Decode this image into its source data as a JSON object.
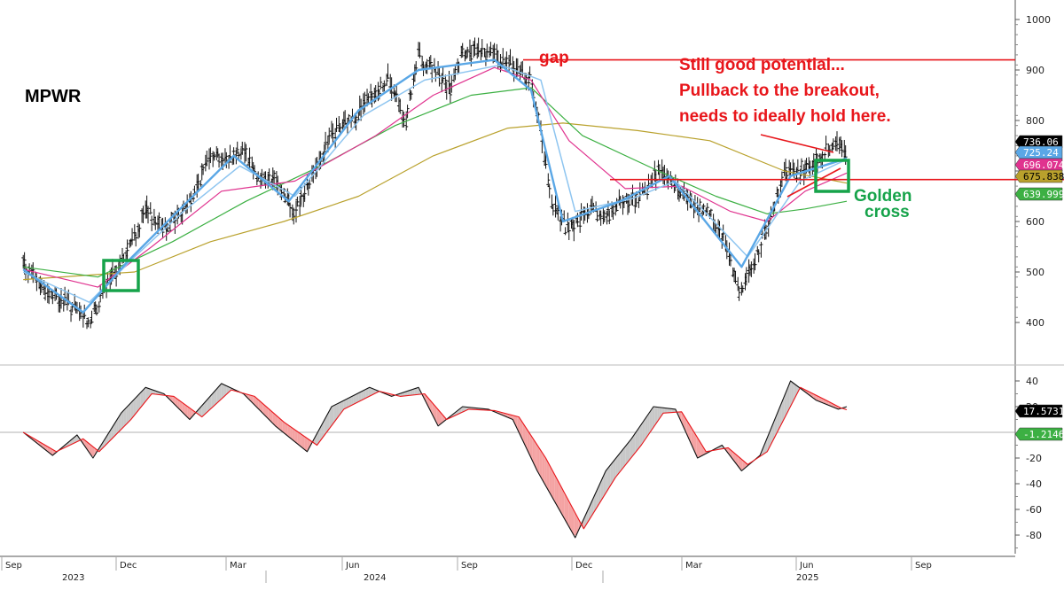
{
  "chart_data": [
    {
      "type": "candlestick",
      "ticker": "MPWR",
      "ylim": [
        365,
        1010
      ],
      "yticks": [
        400,
        500,
        600,
        700,
        800,
        900,
        1000
      ],
      "x_month_labels": [
        "Sep",
        "Dec",
        "Mar",
        "Jun",
        "Sep",
        "Dec",
        "Mar",
        "Jun",
        "Sep"
      ],
      "x_year_labels": [
        "2023",
        "2024",
        "2025"
      ],
      "price_path": [
        [
          "2023-09-01",
          520
        ],
        [
          "2023-09-20",
          460
        ],
        [
          "2023-10-05",
          440
        ],
        [
          "2023-10-25",
          400
        ],
        [
          "2023-11-10",
          480
        ],
        [
          "2023-11-25",
          540
        ],
        [
          "2023-12-10",
          620
        ],
        [
          "2023-12-25",
          590
        ],
        [
          "2024-01-08",
          615
        ],
        [
          "2024-01-20",
          660
        ],
        [
          "2024-02-01",
          740
        ],
        [
          "2024-02-15",
          720
        ],
        [
          "2024-02-28",
          750
        ],
        [
          "2024-03-10",
          690
        ],
        [
          "2024-03-25",
          680
        ],
        [
          "2024-04-10",
          620
        ],
        [
          "2024-04-25",
          700
        ],
        [
          "2024-05-10",
          770
        ],
        [
          "2024-05-25",
          800
        ],
        [
          "2024-06-10",
          840
        ],
        [
          "2024-06-25",
          880
        ],
        [
          "2024-07-10",
          800
        ],
        [
          "2024-07-20",
          930
        ],
        [
          "2024-08-05",
          890
        ],
        [
          "2024-08-15",
          860
        ],
        [
          "2024-08-25",
          930
        ],
        [
          "2024-09-10",
          940
        ],
        [
          "2024-09-28",
          915
        ],
        [
          "2024-10-10",
          900
        ],
        [
          "2024-10-20",
          880
        ],
        [
          "2024-10-28",
          770
        ],
        [
          "2024-11-05",
          640
        ],
        [
          "2024-11-20",
          580
        ],
        [
          "2024-12-05",
          620
        ],
        [
          "2024-12-20",
          610
        ],
        [
          "2025-01-05",
          640
        ],
        [
          "2025-01-20",
          650
        ],
        [
          "2025-02-01",
          705
        ],
        [
          "2025-02-15",
          670
        ],
        [
          "2025-02-28",
          640
        ],
        [
          "2025-03-15",
          610
        ],
        [
          "2025-03-28",
          560
        ],
        [
          "2025-04-08",
          460
        ],
        [
          "2025-04-20",
          520
        ],
        [
          "2025-05-01",
          590
        ],
        [
          "2025-05-15",
          690
        ],
        [
          "2025-05-28",
          700
        ],
        [
          "2025-06-10",
          720
        ],
        [
          "2025-06-25",
          760
        ],
        [
          "2025-07-05",
          736
        ]
      ],
      "ema_fast": [
        [
          "2023-09-01",
          505
        ],
        [
          "2023-10-20",
          420
        ],
        [
          "2023-11-25",
          520
        ],
        [
          "2024-01-01",
          610
        ],
        [
          "2024-02-20",
          730
        ],
        [
          "2024-04-05",
          640
        ],
        [
          "2024-06-01",
          820
        ],
        [
          "2024-07-20",
          900
        ],
        [
          "2024-09-20",
          920
        ],
        [
          "2024-10-20",
          860
        ],
        [
          "2024-11-15",
          600
        ],
        [
          "2025-01-01",
          640
        ],
        [
          "2025-02-10",
          690
        ],
        [
          "2025-04-10",
          510
        ],
        [
          "2025-05-20",
          690
        ],
        [
          "2025-07-05",
          725
        ]
      ],
      "ema_slow": [
        [
          "2023-09-01",
          500
        ],
        [
          "2023-10-25",
          440
        ],
        [
          "2023-12-01",
          530
        ],
        [
          "2024-01-10",
          620
        ],
        [
          "2024-02-25",
          710
        ],
        [
          "2024-04-10",
          650
        ],
        [
          "2024-06-05",
          810
        ],
        [
          "2024-07-25",
          880
        ],
        [
          "2024-09-25",
          910
        ],
        [
          "2024-10-28",
          880
        ],
        [
          "2024-11-25",
          620
        ],
        [
          "2025-01-10",
          645
        ],
        [
          "2025-02-15",
          680
        ],
        [
          "2025-04-15",
          530
        ],
        [
          "2025-05-28",
          680
        ],
        [
          "2025-07-05",
          723
        ]
      ],
      "ma_50": [
        [
          "2023-09-01",
          505
        ],
        [
          "2023-11-01",
          470
        ],
        [
          "2023-12-15",
          550
        ],
        [
          "2024-02-10",
          660
        ],
        [
          "2024-04-10",
          680
        ],
        [
          "2024-06-15",
          770
        ],
        [
          "2024-08-01",
          850
        ],
        [
          "2024-09-20",
          905
        ],
        [
          "2024-10-20",
          880
        ],
        [
          "2024-11-20",
          760
        ],
        [
          "2025-01-05",
          665
        ],
        [
          "2025-02-20",
          670
        ],
        [
          "2025-04-01",
          620
        ],
        [
          "2025-05-01",
          600
        ],
        [
          "2025-06-01",
          660
        ],
        [
          "2025-07-05",
          696
        ]
      ],
      "ma_100": [
        [
          "2023-09-01",
          510
        ],
        [
          "2023-11-01",
          490
        ],
        [
          "2024-01-01",
          560
        ],
        [
          "2024-03-01",
          640
        ],
        [
          "2024-05-01",
          710
        ],
        [
          "2024-07-01",
          790
        ],
        [
          "2024-09-01",
          850
        ],
        [
          "2024-10-20",
          865
        ],
        [
          "2024-12-01",
          770
        ],
        [
          "2025-02-01",
          700
        ],
        [
          "2025-03-20",
          650
        ],
        [
          "2025-05-01",
          615
        ],
        [
          "2025-06-01",
          625
        ],
        [
          "2025-07-05",
          640
        ]
      ],
      "ma_200": [
        [
          "2023-09-01",
          485
        ],
        [
          "2023-12-01",
          500
        ],
        [
          "2024-02-01",
          560
        ],
        [
          "2024-04-01",
          600
        ],
        [
          "2024-06-01",
          650
        ],
        [
          "2024-08-01",
          730
        ],
        [
          "2024-10-01",
          785
        ],
        [
          "2024-11-15",
          795
        ],
        [
          "2025-01-15",
          780
        ],
        [
          "2025-03-15",
          760
        ],
        [
          "2025-05-15",
          700
        ],
        [
          "2025-07-05",
          676
        ]
      ],
      "lines": [
        {
          "name": "gap",
          "y": 920
        },
        {
          "name": "breakout",
          "y": 683
        }
      ],
      "price_tags": [
        {
          "value": "736.06",
          "bg": "#000000",
          "fg": "#ffffff"
        },
        {
          "value": "725.24",
          "bg": "#5aa7e6",
          "fg": "#ffffff"
        },
        {
          "value": "696.0748",
          "bg": "#e0338f",
          "fg": "#ffffff"
        },
        {
          "value": "675.8386",
          "bg": "#b9a12c",
          "fg": "#000000"
        },
        {
          "value": "639.9992",
          "bg": "#3cb043",
          "fg": "#ffffff"
        }
      ],
      "annotations": [
        {
          "text": "gap",
          "color": "#e8161b"
        },
        {
          "text": "Still good potential...",
          "color": "#e8161b"
        },
        {
          "text": "Pullback to the breakout,",
          "color": "#e8161b"
        },
        {
          "text": "needs to ideally hold here.",
          "color": "#e8161b"
        },
        {
          "text": "Golden",
          "color": "#16a34a"
        },
        {
          "text": "cross",
          "color": "#16a34a"
        }
      ]
    },
    {
      "type": "line",
      "ylim": [
        -90,
        45
      ],
      "yticks": [
        40,
        20,
        -20,
        -40,
        -60,
        -80
      ],
      "zero_line": 0,
      "macd_path": [
        [
          "2023-09-01",
          0
        ],
        [
          "2023-09-25",
          -18
        ],
        [
          "2023-10-15",
          -2
        ],
        [
          "2023-10-28",
          -20
        ],
        [
          "2023-11-20",
          15
        ],
        [
          "2023-12-10",
          35
        ],
        [
          "2023-12-25",
          30
        ],
        [
          "2024-01-15",
          10
        ],
        [
          "2024-02-10",
          38
        ],
        [
          "2024-02-28",
          30
        ],
        [
          "2024-03-25",
          5
        ],
        [
          "2024-04-20",
          -15
        ],
        [
          "2024-05-10",
          20
        ],
        [
          "2024-06-10",
          35
        ],
        [
          "2024-06-28",
          28
        ],
        [
          "2024-07-20",
          35
        ],
        [
          "2024-08-05",
          5
        ],
        [
          "2024-08-25",
          20
        ],
        [
          "2024-09-15",
          18
        ],
        [
          "2024-10-05",
          10
        ],
        [
          "2024-10-25",
          -30
        ],
        [
          "2024-11-25",
          -82
        ],
        [
          "2024-12-20",
          -30
        ],
        [
          "2025-01-10",
          -5
        ],
        [
          "2025-01-28",
          20
        ],
        [
          "2025-02-15",
          18
        ],
        [
          "2025-03-05",
          -20
        ],
        [
          "2025-03-25",
          -10
        ],
        [
          "2025-04-10",
          -30
        ],
        [
          "2025-04-25",
          -18
        ],
        [
          "2025-05-20",
          40
        ],
        [
          "2025-06-10",
          25
        ],
        [
          "2025-06-28",
          18
        ],
        [
          "2025-07-05",
          20
        ]
      ],
      "signal_path": [
        [
          "2023-09-01",
          0
        ],
        [
          "2023-09-28",
          -15
        ],
        [
          "2023-10-20",
          -5
        ],
        [
          "2023-11-02",
          -15
        ],
        [
          "2023-11-28",
          10
        ],
        [
          "2023-12-15",
          30
        ],
        [
          "2024-01-02",
          28
        ],
        [
          "2024-01-25",
          12
        ],
        [
          "2024-02-18",
          33
        ],
        [
          "2024-03-08",
          28
        ],
        [
          "2024-04-01",
          8
        ],
        [
          "2024-04-28",
          -10
        ],
        [
          "2024-05-20",
          18
        ],
        [
          "2024-06-18",
          32
        ],
        [
          "2024-07-05",
          28
        ],
        [
          "2024-07-25",
          30
        ],
        [
          "2024-08-12",
          10
        ],
        [
          "2024-08-30",
          18
        ],
        [
          "2024-09-20",
          17
        ],
        [
          "2024-10-10",
          12
        ],
        [
          "2024-11-01",
          -20
        ],
        [
          "2024-12-02",
          -75
        ],
        [
          "2024-12-28",
          -35
        ],
        [
          "2025-01-18",
          -10
        ],
        [
          "2025-02-05",
          15
        ],
        [
          "2025-02-20",
          16
        ],
        [
          "2025-03-12",
          -15
        ],
        [
          "2025-03-30",
          -12
        ],
        [
          "2025-04-15",
          -25
        ],
        [
          "2025-05-01",
          -15
        ],
        [
          "2025-05-28",
          35
        ],
        [
          "2025-06-18",
          25
        ],
        [
          "2025-06-30",
          19
        ],
        [
          "2025-07-05",
          17.57
        ]
      ],
      "value_tags": [
        {
          "value": "17.5731",
          "bg": "#000000",
          "fg": "#ffffff"
        },
        {
          "value": "-1.2146",
          "bg": "#3cb043",
          "fg": "#ffffff"
        }
      ]
    }
  ]
}
